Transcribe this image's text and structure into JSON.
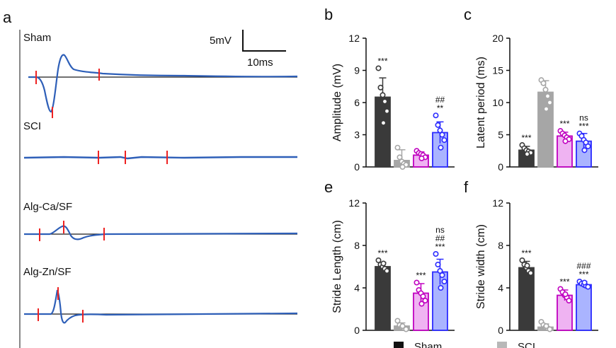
{
  "colors": {
    "sham": "#3a3a3a",
    "scl": "#a6a6a6",
    "alg_ca": "#c000c0",
    "alg_ca_fill": "#efb3f2",
    "alg_zn": "#2b2bff",
    "alg_zn_fill": "#aab4ff",
    "trace": "#2e5fb8",
    "marker": "#ee2222",
    "baseline": "#1a1a1a"
  },
  "panel_a": {
    "letter": "a",
    "scale_amp": "5mV",
    "scale_time": "10ms",
    "traces": [
      {
        "label": "Sham"
      },
      {
        "label": "SCI"
      },
      {
        "label": "Alg-Ca/SF"
      },
      {
        "label": "Alg-Zn/SF"
      }
    ]
  },
  "legend": {
    "items": [
      {
        "label": "Sham",
        "color": "#111111"
      },
      {
        "label": "SCI",
        "color": "#b8b8b8"
      }
    ]
  },
  "chart_data": [
    {
      "panel": "b",
      "type": "bar",
      "title": "",
      "xlabel": "",
      "ylabel": "Amplitude (mV)",
      "ylim": [
        0,
        12
      ],
      "yticks": [
        "0",
        "3",
        "6",
        "9",
        "12"
      ],
      "categories": [
        "Sham",
        "SCI",
        "Alg-Ca/SF",
        "Alg-Zn/SF"
      ],
      "values": [
        6.5,
        0.6,
        1.1,
        3.2
      ],
      "errors": [
        1.8,
        1.0,
        0.3,
        1.0
      ],
      "points": [
        [
          9.2,
          7.4,
          6.7,
          6.1,
          5.2,
          4.1
        ],
        [
          1.8,
          0.9,
          0.5,
          0.3,
          0.2,
          0.0
        ],
        [
          1.5,
          1.3,
          1.2,
          1.1,
          0.9,
          0.8
        ],
        [
          4.8,
          3.9,
          3.4,
          3.0,
          2.5,
          1.8
        ]
      ],
      "annotations": [
        [
          "***"
        ],
        [],
        [],
        [
          "##",
          "**"
        ]
      ]
    },
    {
      "panel": "c",
      "type": "bar",
      "title": "",
      "xlabel": "",
      "ylabel": "Latent period (ms)",
      "ylim": [
        0,
        20
      ],
      "yticks": [
        "0",
        "5",
        "10",
        "15",
        "20"
      ],
      "categories": [
        "Sham",
        "SCI",
        "Alg-Ca/SF",
        "Alg-Zn/SF"
      ],
      "values": [
        2.6,
        11.6,
        4.8,
        4.0
      ],
      "errors": [
        0.6,
        1.8,
        0.6,
        1.2
      ],
      "points": [
        [
          3.4,
          2.9,
          2.6,
          2.4,
          2.2,
          2.0
        ],
        [
          13.5,
          13.0,
          12.0,
          11.0,
          10.0,
          9.0
        ],
        [
          5.6,
          5.2,
          4.9,
          4.6,
          4.3,
          4.0
        ],
        [
          5.2,
          4.8,
          4.2,
          3.8,
          3.2,
          2.6
        ]
      ],
      "annotations": [
        [
          "***"
        ],
        [],
        [
          "***"
        ],
        [
          "ns",
          "***"
        ]
      ]
    },
    {
      "panel": "e",
      "type": "bar",
      "title": "",
      "xlabel": "",
      "ylabel": "Stride Length (cm)",
      "ylim": [
        0,
        12
      ],
      "yticks": [
        "0",
        "4",
        "8",
        "12"
      ],
      "categories": [
        "Sham",
        "SCI",
        "Alg-Ca/SF",
        "Alg-Zn/SF"
      ],
      "values": [
        6.0,
        0.4,
        3.5,
        5.5
      ],
      "errors": [
        0.4,
        0.3,
        0.9,
        1.2
      ],
      "points": [
        [
          6.6,
          6.2,
          6.0,
          5.8,
          5.6,
          6.3
        ],
        [
          0.9,
          0.5,
          0.3,
          0.2,
          0.1,
          0.4
        ],
        [
          4.5,
          3.8,
          3.5,
          3.2,
          2.8,
          2.5
        ],
        [
          7.2,
          6.2,
          5.6,
          5.2,
          4.6,
          4.0
        ]
      ],
      "annotations": [
        [
          "***"
        ],
        [],
        [
          "***"
        ],
        [
          "ns",
          "##",
          "***"
        ]
      ]
    },
    {
      "panel": "f",
      "type": "bar",
      "title": "",
      "xlabel": "",
      "ylabel": "Stride width (cm)",
      "ylim": [
        0,
        12
      ],
      "yticks": [
        "0",
        "4",
        "8",
        "12"
      ],
      "categories": [
        "Sham",
        "SCI",
        "Alg-Ca/SF",
        "Alg-Zn/SF"
      ],
      "values": [
        5.9,
        0.3,
        3.3,
        4.3
      ],
      "errors": [
        0.6,
        0.3,
        0.5,
        0.3
      ],
      "points": [
        [
          6.6,
          6.2,
          5.9,
          5.6,
          5.4,
          6.1
        ],
        [
          0.8,
          0.5,
          0.3,
          0.2,
          0.1,
          0.4
        ],
        [
          3.9,
          3.6,
          3.3,
          3.1,
          2.8,
          3.4
        ],
        [
          4.6,
          4.4,
          4.3,
          4.2,
          4.1,
          4.5
        ]
      ],
      "annotations": [
        [
          "***"
        ],
        [],
        [
          "***"
        ],
        [
          "###",
          "***"
        ]
      ]
    }
  ]
}
